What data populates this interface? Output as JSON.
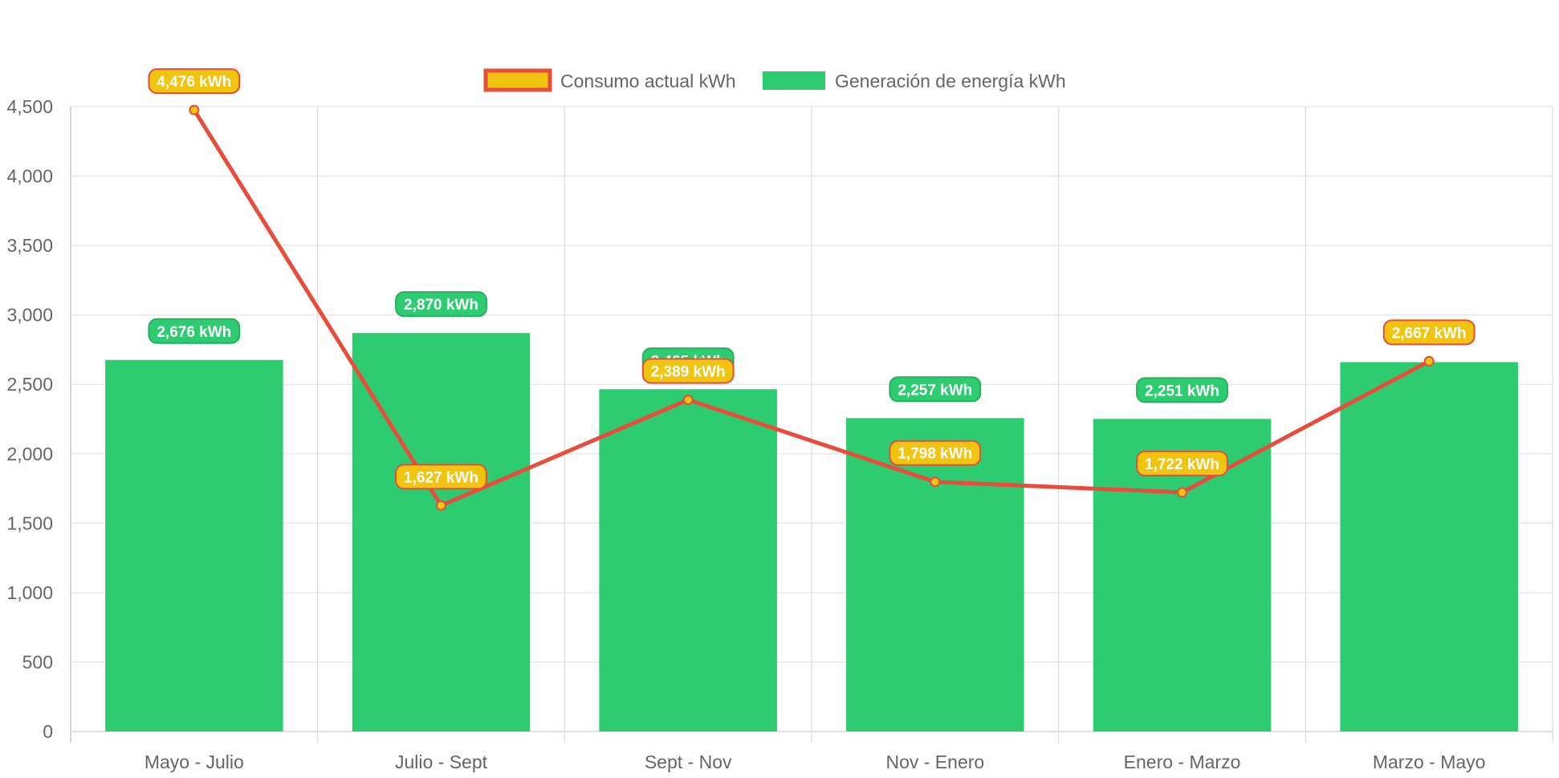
{
  "chart_data": {
    "type": "bar",
    "categories": [
      "Mayo - Julio",
      "Julio - Sept",
      "Sept - Nov",
      "Nov - Enero",
      "Enero - Marzo",
      "Marzo - Mayo"
    ],
    "series": [
      {
        "name": "Generación de energía kWh",
        "type": "bar",
        "values": [
          2676,
          2870,
          2465,
          2257,
          2251,
          2660
        ],
        "data_labels": [
          "2,676 kWh",
          "2,870 kWh",
          "2,465 kWh",
          "2,257 kWh",
          "2,251 kWh",
          ""
        ],
        "color": "#2ecc71"
      },
      {
        "name": "Consumo actual kWh",
        "type": "line",
        "values": [
          4476,
          1627,
          2389,
          1798,
          1722,
          2667
        ],
        "data_labels": [
          "4,476 kWh",
          "1,627 kWh",
          "2,389 kWh",
          "1,798 kWh",
          "1,722 kWh",
          "2,667 kWh"
        ],
        "color": "#e74c3c",
        "fill_color": "#f1c40f"
      }
    ],
    "yticks": [
      "0",
      "500",
      "1,000",
      "1,500",
      "2,000",
      "2,500",
      "3,000",
      "3,500",
      "4,000",
      "4,500"
    ],
    "ylim": [
      0,
      4500
    ],
    "grid": true,
    "legend_position": "top"
  }
}
